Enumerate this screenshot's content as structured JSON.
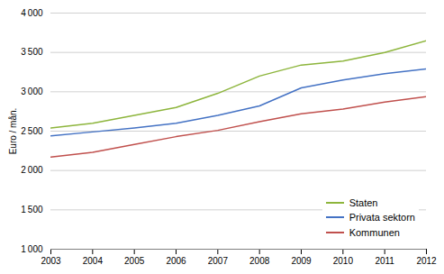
{
  "chart_data": {
    "type": "line",
    "ylabel": "Euro / mån.",
    "x": [
      2003,
      2004,
      2005,
      2006,
      2007,
      2008,
      2009,
      2010,
      2011,
      2012
    ],
    "xlim": [
      2003,
      2012
    ],
    "xticks": [
      2003,
      2004,
      2005,
      2006,
      2007,
      2008,
      2009,
      2010,
      2011,
      2012
    ],
    "series": [
      {
        "name": "Staten",
        "color": "#8db53c",
        "values": [
          2540,
          2600,
          2700,
          2800,
          2980,
          3200,
          3340,
          3390,
          3500,
          3650
        ]
      },
      {
        "name": "Privata sektorn",
        "color": "#4472c4",
        "values": [
          2440,
          2490,
          2540,
          2600,
          2700,
          2820,
          3050,
          3150,
          3230,
          3290
        ]
      },
      {
        "name": "Kommunen",
        "color": "#c0504d",
        "values": [
          2170,
          2230,
          2330,
          2430,
          2510,
          2620,
          2720,
          2780,
          2870,
          2940
        ]
      }
    ],
    "ylim": [
      1000,
      4000
    ],
    "yticks": [
      {
        "value": 1000,
        "label": "1 000"
      },
      {
        "value": 1500,
        "label": "1 500"
      },
      {
        "value": 2000,
        "label": "2 000"
      },
      {
        "value": 2500,
        "label": "2 500"
      },
      {
        "value": 3000,
        "label": "3 000"
      },
      {
        "value": 3500,
        "label": "3 500"
      },
      {
        "value": 4000,
        "label": "4 000"
      }
    ],
    "grid": true,
    "legend": "lower right"
  }
}
